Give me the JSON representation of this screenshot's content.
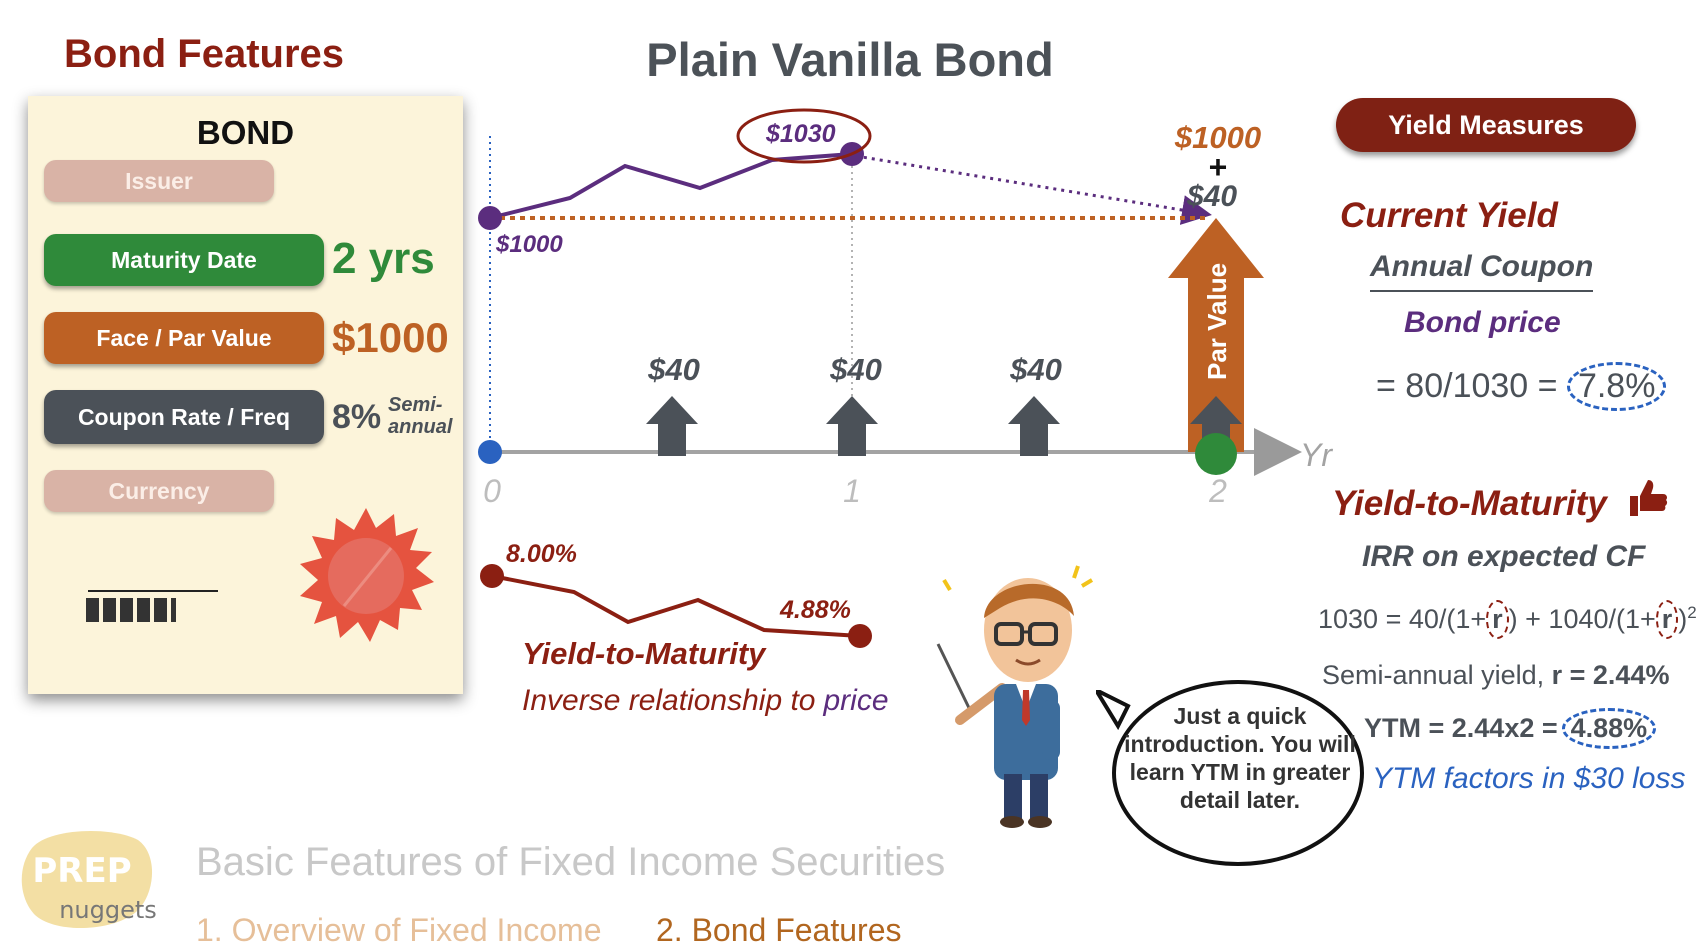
{
  "left_title": "Bond Features",
  "center_title": "Plain Vanilla Bond",
  "card": {
    "heading": "BOND",
    "issuer_label": "Issuer",
    "maturity_label": "Maturity Date",
    "maturity_value": "2 yrs",
    "face_label": "Face / Par Value",
    "face_value": "$1000",
    "coupon_label": "Coupon Rate / Freq",
    "coupon_value": "8%",
    "coupon_freq_line1": "Semi-",
    "coupon_freq_line2": "annual",
    "currency_label": "Currency"
  },
  "timeline": {
    "price_start": "$1000",
    "price_peak": "$1030",
    "final_amount": "$1000",
    "plus": "+",
    "final_coupon": "$40",
    "coupon_labels": [
      "$40",
      "$40",
      "$40"
    ],
    "par_value_label": "Par Value",
    "axis_label": "Yr",
    "ticks": [
      "0",
      "1",
      "2"
    ]
  },
  "ytm_chart": {
    "start_label": "8.00%",
    "end_label": "4.88%",
    "title": "Yield-to-Maturity",
    "subtitle_prefix": "Inverse relationship to",
    "subtitle_suffix": "price"
  },
  "right": {
    "button": "Yield Measures",
    "current_yield_title": "Current Yield",
    "numerator": "Annual Coupon",
    "denominator": "Bond price",
    "cy_calc": "= 80/1030 = ",
    "cy_result": "7.8%",
    "ytm_title": "Yield-to-Maturity",
    "irr_text": "IRR on expected CF",
    "eq_a": "1030 = 40/(1+",
    "eq_r1": "r",
    "eq_b": ") + 1040/(1+",
    "eq_r2": "r",
    "eq_c": ")",
    "eq_exp": "2",
    "semi_prefix": "Semi-annual yield,",
    "semi_value": "r = 2.44%",
    "ytm_calc": "YTM = 2.44x2 =",
    "ytm_result": "4.88%",
    "ytm_note": "YTM factors in $30 loss"
  },
  "bubble": "Just a quick introduction. You will learn YTM in greater detail later.",
  "logo": {
    "line1": "PREP",
    "line2": "nuggets"
  },
  "footer": {
    "main": "Basic Features of Fixed Income Securities",
    "item1": "1. Overview of Fixed Income",
    "item2": "2. Bond Features"
  },
  "colors": {
    "purple": "#5b2d7e",
    "orange": "#bd6124",
    "dark_red": "#8b1f12",
    "slate": "#4b5158",
    "green": "#2f8a3a",
    "blue": "#2a62c0"
  }
}
